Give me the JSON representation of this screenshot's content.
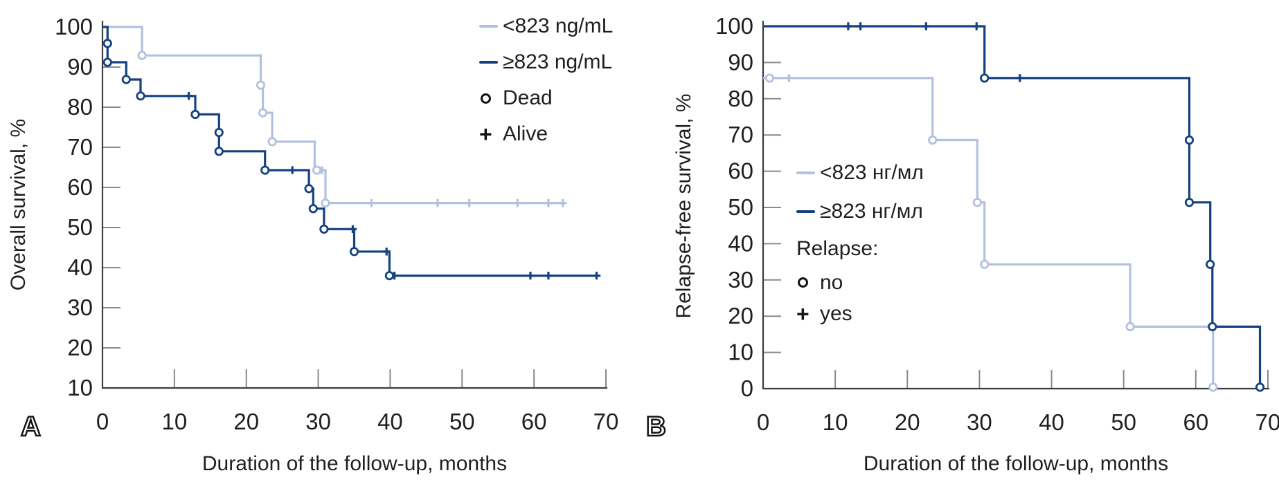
{
  "colors": {
    "light": "#b3c0de",
    "dark": "#14417f",
    "axis": "#3d3d3d",
    "tick": "#8a8a8a",
    "text": "#1f1f1f"
  },
  "panels": [
    {
      "letter": "A",
      "y_axis_title": "Overall survival, %",
      "x_axis_title": "Duration of the follow-up, months",
      "legend": {
        "items": [
          {
            "marker": "dash",
            "color": "light",
            "label": "<823 ng/mL"
          },
          {
            "marker": "dash",
            "color": "dark",
            "label": "≥823 ng/mL"
          },
          {
            "marker": "circle",
            "color": "black",
            "label": "Dead"
          },
          {
            "marker": "plus",
            "color": "black",
            "label": "Alive"
          }
        ]
      }
    },
    {
      "letter": "B",
      "y_axis_title": "Relapse-free survival, %",
      "x_axis_title": "Duration of the follow-up, months",
      "legend": {
        "heading": "Relapse:",
        "items": [
          {
            "marker": "dash",
            "color": "light",
            "label": "<823 нг/мл"
          },
          {
            "marker": "dash",
            "color": "dark",
            "label": "≥823 нг/мл"
          },
          {
            "marker": "circle",
            "color": "black",
            "label": "no"
          },
          {
            "marker": "plus",
            "color": "black",
            "label": "yes"
          }
        ]
      }
    }
  ],
  "chart_data": [
    {
      "type": "line",
      "subtype": "kaplan-meier-step",
      "panel": "A",
      "xlabel": "Duration of the follow-up, months",
      "ylabel": "Overall survival, %",
      "xlim": [
        0,
        70
      ],
      "ylim": [
        10,
        100
      ],
      "xticks": [
        0,
        10,
        20,
        30,
        40,
        50,
        60,
        70
      ],
      "yticks": [
        10,
        20,
        30,
        40,
        50,
        60,
        70,
        80,
        90,
        100
      ],
      "grid": false,
      "legend_position": "top-right",
      "marker_meaning": {
        "circle": "Dead",
        "plus": "Alive"
      },
      "series": [
        {
          "name": "<823 ng/mL",
          "color_key": "light",
          "points": [
            [
              0,
              100
            ],
            [
              5.5,
              100
            ],
            [
              5.5,
              92.9
            ],
            [
              22,
              92.9
            ],
            [
              22,
              85.5
            ],
            [
              22.3,
              85.5
            ],
            [
              22.3,
              78.6
            ],
            [
              23.6,
              78.6
            ],
            [
              23.6,
              71.4
            ],
            [
              29.5,
              71.4
            ],
            [
              29.5,
              64.3
            ],
            [
              31,
              64.3
            ],
            [
              31,
              56.1
            ],
            [
              64.3,
              56.1
            ]
          ],
          "event_markers": [
            [
              5.5,
              92.9
            ],
            [
              22,
              85.5
            ],
            [
              22.3,
              78.6
            ],
            [
              23.6,
              71.4
            ],
            [
              29.8,
              64.3
            ],
            [
              31,
              56.1
            ]
          ],
          "censor_markers": [
            [
              30.5,
              64.3
            ],
            [
              37.4,
              56.1
            ],
            [
              46.6,
              56.1
            ],
            [
              51,
              56.1
            ],
            [
              57.7,
              56.1
            ],
            [
              62,
              56.1
            ],
            [
              64,
              56.1
            ]
          ]
        },
        {
          "name": "≥823 ng/mL",
          "color_key": "dark",
          "points": [
            [
              0,
              100
            ],
            [
              0.7,
              100
            ],
            [
              0.7,
              91.2
            ],
            [
              3.3,
              91.2
            ],
            [
              3.3,
              86.9
            ],
            [
              5.3,
              86.9
            ],
            [
              5.3,
              82.8
            ],
            [
              12.9,
              82.8
            ],
            [
              12.9,
              78.2
            ],
            [
              16.2,
              78.2
            ],
            [
              16.2,
              69
            ],
            [
              22.6,
              69
            ],
            [
              22.6,
              64.3
            ],
            [
              28.7,
              64.3
            ],
            [
              28.7,
              59.7
            ],
            [
              29.3,
              59.7
            ],
            [
              29.3,
              54.7
            ],
            [
              30.8,
              54.7
            ],
            [
              30.8,
              49.6
            ],
            [
              35,
              49.6
            ],
            [
              35,
              44
            ],
            [
              39.9,
              44
            ],
            [
              39.9,
              38
            ],
            [
              68.7,
              38
            ]
          ],
          "event_markers": [
            [
              0.7,
              95.9
            ],
            [
              0.7,
              91.2
            ],
            [
              3.3,
              86.9
            ],
            [
              5.3,
              82.8
            ],
            [
              12.9,
              78.2
            ],
            [
              16.2,
              73.7
            ],
            [
              16.2,
              69
            ],
            [
              22.6,
              64.3
            ],
            [
              28.7,
              59.7
            ],
            [
              29.3,
              54.7
            ],
            [
              30.8,
              49.6
            ],
            [
              35,
              44
            ],
            [
              39.9,
              38
            ]
          ],
          "censor_markers": [
            [
              12,
              82.8
            ],
            [
              26.4,
              64.3
            ],
            [
              34.8,
              49.6
            ],
            [
              39.5,
              44
            ],
            [
              40.6,
              38
            ],
            [
              59.5,
              38
            ],
            [
              62,
              38
            ],
            [
              68.7,
              38
            ]
          ]
        }
      ]
    },
    {
      "type": "line",
      "subtype": "kaplan-meier-step",
      "panel": "B",
      "xlabel": "Duration of the follow-up, months",
      "ylabel": "Relapse-free survival, %",
      "xlim": [
        0,
        70
      ],
      "ylim": [
        0,
        100
      ],
      "xticks": [
        0,
        10,
        20,
        30,
        40,
        50,
        60,
        70
      ],
      "yticks": [
        0,
        10,
        20,
        30,
        40,
        50,
        60,
        70,
        80,
        90,
        100
      ],
      "grid": false,
      "legend_position": "center-left",
      "marker_meaning": {
        "circle": "no relapse",
        "plus": "relapse"
      },
      "series": [
        {
          "name": "<823 нг/мл",
          "color_key": "light",
          "points": [
            [
              0,
              85.7
            ],
            [
              23.5,
              85.7
            ],
            [
              23.5,
              68.6
            ],
            [
              29.7,
              68.6
            ],
            [
              29.7,
              51.4
            ],
            [
              30.7,
              51.4
            ],
            [
              30.7,
              34.3
            ],
            [
              50.9,
              34.3
            ],
            [
              50.9,
              17.1
            ],
            [
              62.4,
              17.1
            ],
            [
              62.4,
              0.4
            ]
          ],
          "event_markers": [
            [
              0.9,
              85.7
            ],
            [
              23.5,
              68.6
            ],
            [
              29.7,
              51.4
            ],
            [
              30.7,
              34.3
            ],
            [
              50.9,
              17.1
            ],
            [
              62.4,
              0.4
            ]
          ],
          "censor_markers": [
            [
              3.6,
              85.7
            ]
          ]
        },
        {
          "name": "≥823 нг/мл",
          "color_key": "dark",
          "points": [
            [
              0,
              100
            ],
            [
              30.7,
              100
            ],
            [
              30.7,
              85.7
            ],
            [
              59.1,
              85.7
            ],
            [
              59.1,
              51.4
            ],
            [
              62,
              51.4
            ],
            [
              62,
              34.3
            ],
            [
              62.3,
              34.3
            ],
            [
              62.3,
              17.1
            ],
            [
              68.9,
              17.1
            ],
            [
              68.9,
              0.4
            ]
          ],
          "event_markers": [
            [
              30.7,
              85.7
            ],
            [
              59.1,
              68.6
            ],
            [
              59.1,
              51.4
            ],
            [
              62,
              34.3
            ],
            [
              62.3,
              17.1
            ],
            [
              68.9,
              0.4
            ]
          ],
          "censor_markers": [
            [
              11.8,
              100
            ],
            [
              13.5,
              100
            ],
            [
              22.6,
              100
            ],
            [
              29.6,
              100
            ],
            [
              35.6,
              85.7
            ]
          ]
        }
      ]
    }
  ]
}
